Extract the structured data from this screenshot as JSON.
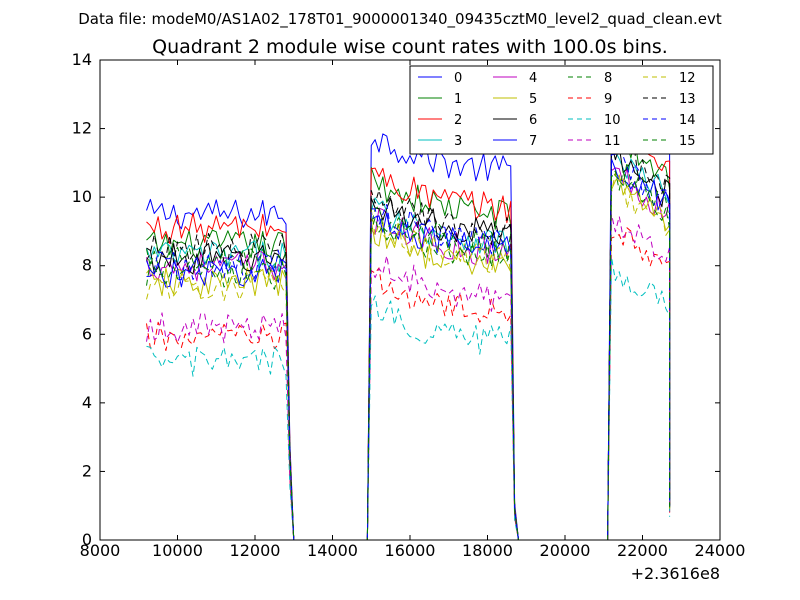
{
  "chart_data": {
    "type": "line",
    "suptitle": "Data file: modeM0/AS1A02_178T01_9000001340_09435cztM0_level2_quad_clean.evt",
    "title": "Quadrant 2 module wise count rates with 100.0s bins.",
    "xlabel": "",
    "ylabel": "",
    "xlim": [
      8000,
      24000
    ],
    "ylim": [
      0,
      14
    ],
    "x_offset_label": "+2.3616e8",
    "x_ticks": [
      "8000",
      "10000",
      "12000",
      "14000",
      "16000",
      "18000",
      "20000",
      "22000",
      "24000"
    ],
    "y_ticks": [
      "0",
      "2",
      "4",
      "6",
      "8",
      "10",
      "12",
      "14"
    ],
    "bin_width": 100,
    "grid": false,
    "legend_position": "top-right",
    "legend_columns": 4,
    "segments": [
      {
        "start": 9200,
        "end": 12800
      },
      {
        "start": 15000,
        "end": 18600
      },
      {
        "start": 21200,
        "end": 22700
      }
    ],
    "gap_points": [
      {
        "x": 12900,
        "fraction": 0.3
      },
      {
        "x": 13000,
        "fraction": 0
      },
      {
        "x": 14900,
        "fraction": 0
      },
      {
        "x": 18700,
        "fraction": 0.1
      },
      {
        "x": 18800,
        "fraction": 0
      },
      {
        "x": 21100,
        "fraction": 0
      },
      {
        "x": 22700,
        "fraction": 0.1
      }
    ],
    "series": [
      {
        "name": "0",
        "color": "#0000ff",
        "dashed": false,
        "levels": [
          9.5,
          10.8,
          11.4
        ],
        "approximate": true
      },
      {
        "name": "1",
        "color": "#008000",
        "dashed": false,
        "levels": [
          8.6,
          9.5,
          10.6
        ],
        "approximate": true
      },
      {
        "name": "2",
        "color": "#ff0000",
        "dashed": false,
        "levels": [
          9.1,
          9.7,
          10.9
        ],
        "approximate": true
      },
      {
        "name": "3",
        "color": "#00bfbf",
        "dashed": false,
        "levels": [
          8.3,
          8.7,
          10.0
        ],
        "approximate": true
      },
      {
        "name": "4",
        "color": "#bf00bf",
        "dashed": false,
        "levels": [
          8.0,
          8.4,
          9.6
        ],
        "approximate": true
      },
      {
        "name": "5",
        "color": "#bfbf00",
        "dashed": false,
        "levels": [
          7.5,
          8.0,
          9.3
        ],
        "approximate": true
      },
      {
        "name": "6",
        "color": "#000000",
        "dashed": false,
        "levels": [
          8.2,
          8.9,
          10.0
        ],
        "approximate": true
      },
      {
        "name": "7",
        "color": "#0000ff",
        "dashed": false,
        "levels": [
          7.8,
          8.5,
          9.8
        ],
        "approximate": true
      },
      {
        "name": "8",
        "color": "#008000",
        "dashed": true,
        "levels": [
          8.1,
          8.6,
          9.7
        ],
        "approximate": true
      },
      {
        "name": "9",
        "color": "#ff0000",
        "dashed": true,
        "levels": [
          5.9,
          6.6,
          8.0
        ],
        "approximate": true
      },
      {
        "name": "10",
        "color": "#00bfbf",
        "dashed": true,
        "levels": [
          5.2,
          5.8,
          6.8
        ],
        "approximate": true
      },
      {
        "name": "11",
        "color": "#bf00bf",
        "dashed": true,
        "levels": [
          6.2,
          7.1,
          8.3
        ],
        "approximate": true
      },
      {
        "name": "12",
        "color": "#bfbf00",
        "dashed": true,
        "levels": [
          7.4,
          8.2,
          9.2
        ],
        "approximate": true
      },
      {
        "name": "13",
        "color": "#000000",
        "dashed": true,
        "levels": [
          8.5,
          9.0,
          10.2
        ],
        "approximate": true
      },
      {
        "name": "14",
        "color": "#0000ff",
        "dashed": true,
        "levels": [
          8.0,
          8.7,
          9.9
        ],
        "approximate": true
      },
      {
        "name": "15",
        "color": "#008000",
        "dashed": true,
        "levels": [
          7.7,
          8.3,
          9.5
        ],
        "approximate": true
      }
    ]
  }
}
